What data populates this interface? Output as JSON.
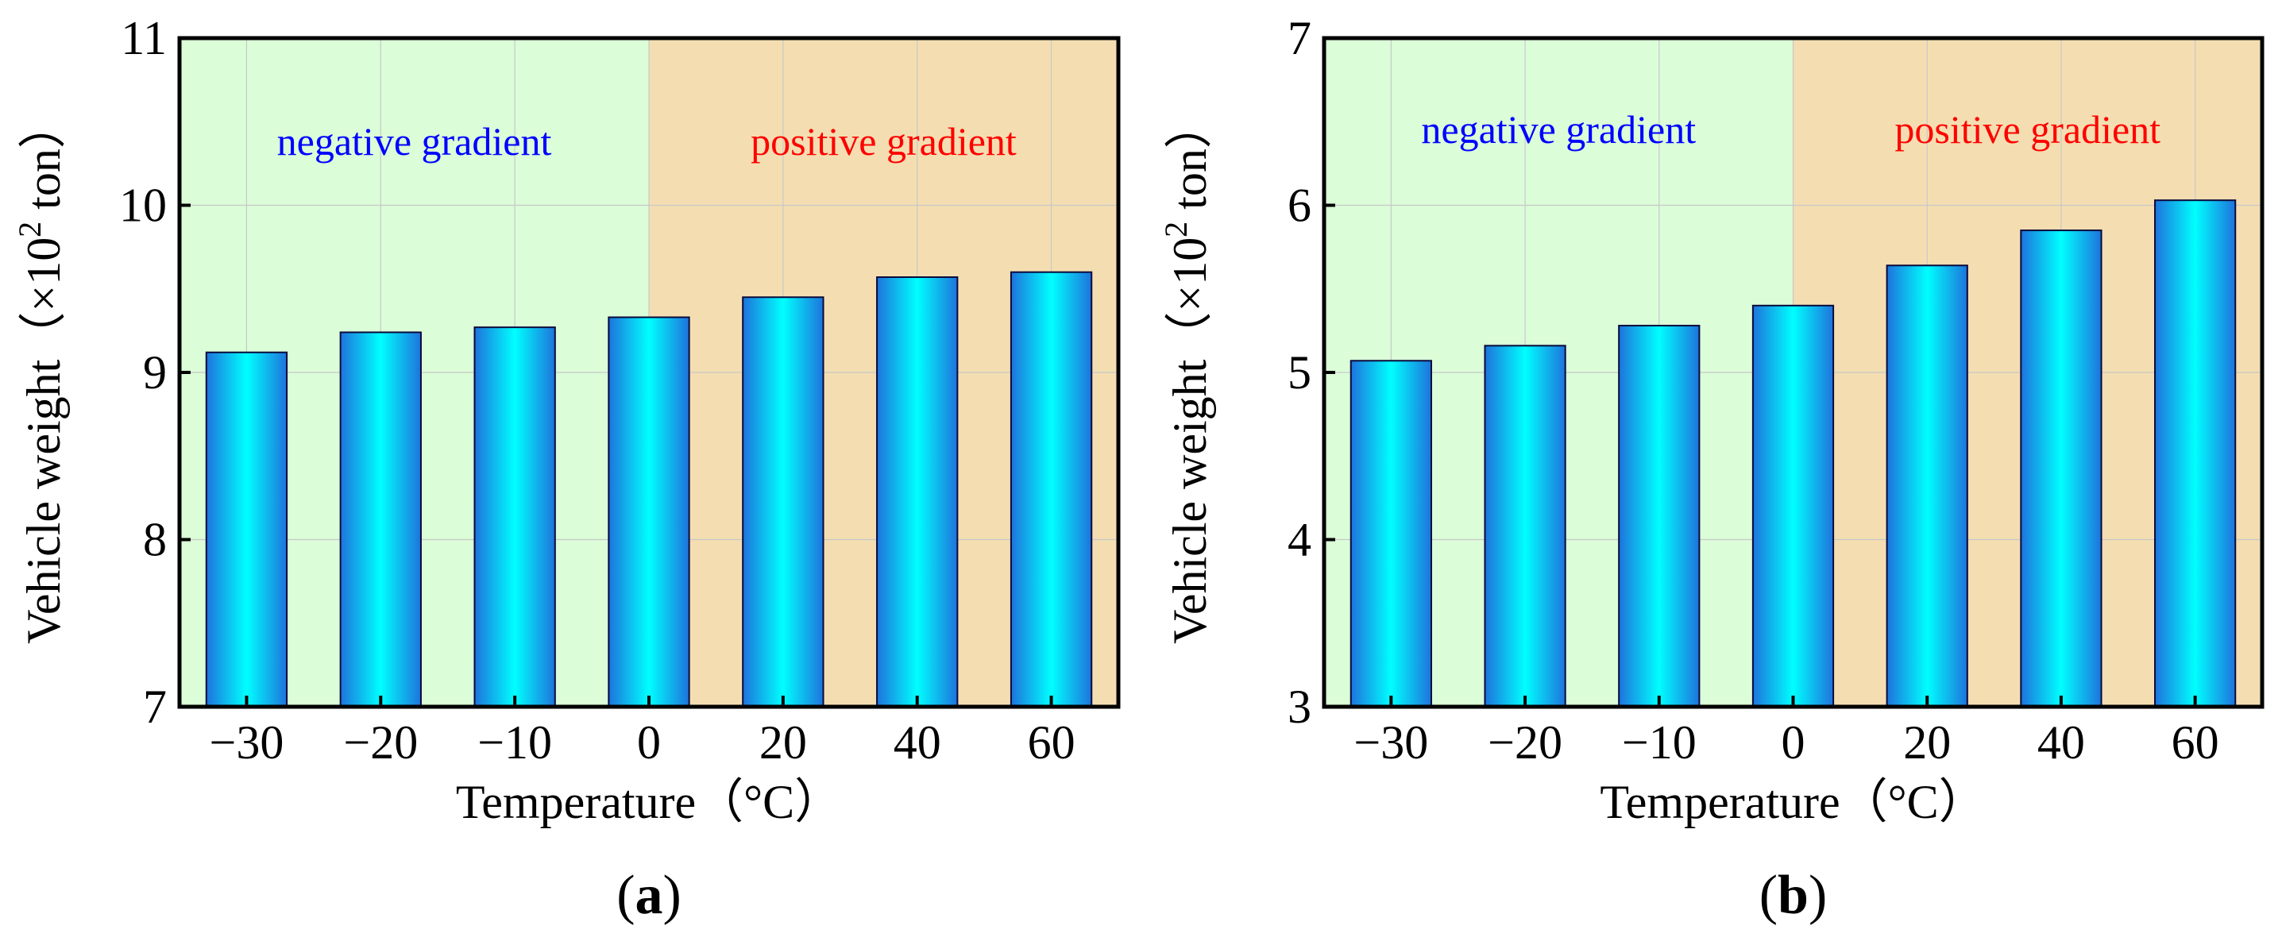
{
  "colors": {
    "negative_region": "#dbfdd8",
    "positive_region": "#f4deb1",
    "negative_text": "#0000ff",
    "positive_text": "#ff0000",
    "bar_edge": "#0a0a3c",
    "bar_center": "#00ffff",
    "bar_side": "#1e73dc",
    "grid": "#c8c8c8"
  },
  "chart_data": [
    {
      "type": "bar",
      "panel_label": {
        "open": "(",
        "letter": "a",
        "close": ")"
      },
      "categories": [
        "−30",
        "−20",
        "−10",
        "0",
        "20",
        "40",
        "60"
      ],
      "values": [
        9.12,
        9.24,
        9.27,
        9.33,
        9.45,
        9.57,
        9.6
      ],
      "xlabel": "Temperature（°C）",
      "ylabel": {
        "prefix": "Vehicle weight（×10",
        "sup": "2",
        "suffix": " ton）"
      },
      "ylim": [
        7,
        11
      ],
      "yticks": [
        "7",
        "8",
        "9",
        "10",
        "11"
      ],
      "regions": [
        {
          "label": "negative gradient",
          "from_index": 0,
          "to_index": 3
        },
        {
          "label": "positive gradient",
          "from_index": 3,
          "to_index": 6
        }
      ],
      "grid": true
    },
    {
      "type": "bar",
      "panel_label": {
        "open": "(",
        "letter": "b",
        "close": ")"
      },
      "categories": [
        "−30",
        "−20",
        "−10",
        "0",
        "20",
        "40",
        "60"
      ],
      "values": [
        5.07,
        5.16,
        5.28,
        5.4,
        5.64,
        5.85,
        6.03
      ],
      "xlabel": "Temperature（°C）",
      "ylabel": {
        "prefix": "Vehicle weight（×10",
        "sup": "2",
        "suffix": " ton）"
      },
      "ylim": [
        3,
        7
      ],
      "yticks": [
        "3",
        "4",
        "5",
        "6",
        "7"
      ],
      "regions": [
        {
          "label": "negative gradient",
          "from_index": 0,
          "to_index": 3
        },
        {
          "label": "positive gradient",
          "from_index": 3,
          "to_index": 6
        }
      ],
      "grid": true
    }
  ]
}
